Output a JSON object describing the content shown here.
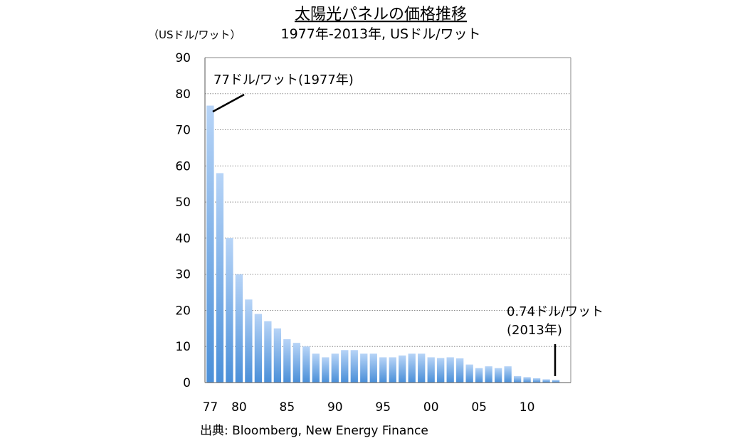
{
  "chart_data": {
    "type": "bar",
    "title": "太陽光パネルの価格推移",
    "subtitle": "1977年-2013年, USドル/ワット",
    "ylabel": "（USドル/ワット）",
    "ylim": [
      0,
      90
    ],
    "yticks": [
      0,
      10,
      20,
      30,
      40,
      50,
      60,
      70,
      80,
      90
    ],
    "grid": "horizontal-dotted",
    "categories": [
      1977,
      1978,
      1979,
      1980,
      1981,
      1982,
      1983,
      1984,
      1985,
      1986,
      1987,
      1988,
      1989,
      1990,
      1991,
      1992,
      1993,
      1994,
      1995,
      1996,
      1997,
      1998,
      1999,
      2000,
      2001,
      2002,
      2003,
      2004,
      2005,
      2006,
      2007,
      2008,
      2009,
      2010,
      2011,
      2012,
      2013
    ],
    "xtick_labels": [
      {
        "year": 1977,
        "label": "77"
      },
      {
        "year": 1980,
        "label": "80"
      },
      {
        "year": 1985,
        "label": "85"
      },
      {
        "year": 1990,
        "label": "90"
      },
      {
        "year": 1995,
        "label": "95"
      },
      {
        "year": 2000,
        "label": "00"
      },
      {
        "year": 2005,
        "label": "05"
      },
      {
        "year": 2010,
        "label": "10"
      }
    ],
    "values": [
      76.7,
      58,
      40,
      30,
      23,
      19,
      17,
      15,
      12,
      11,
      10,
      8,
      7,
      8,
      9,
      9,
      8,
      8,
      7,
      7,
      7.5,
      8,
      8,
      7,
      6.8,
      7,
      6.7,
      5,
      4,
      4.5,
      4,
      4.5,
      1.8,
      1.5,
      1.2,
      0.9,
      0.74
    ],
    "bar_color_top": "#b7d4f7",
    "bar_color_bottom": "#4a8fd8",
    "annotations": [
      {
        "text": "77ドル/ワット(1977年)",
        "year": 1977,
        "value": 76.7
      },
      {
        "text": "0.74ドル/ワット",
        "text2": "(2013年)",
        "year": 2013,
        "value": 0.74
      }
    ],
    "source": "出典: Bloomberg, New Energy Finance"
  }
}
